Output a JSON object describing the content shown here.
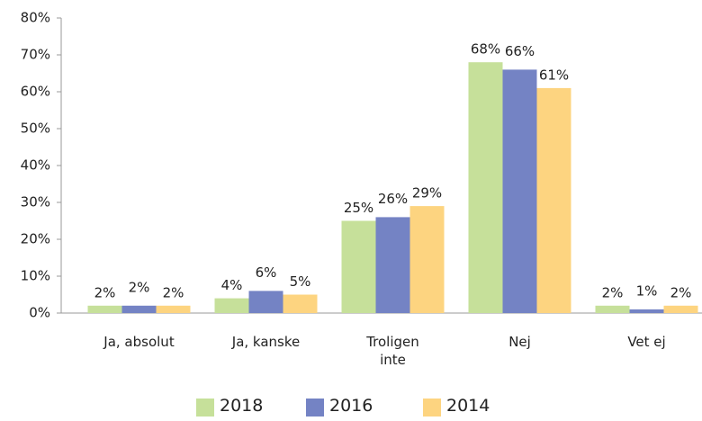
{
  "chart_data": {
    "type": "bar",
    "categories": [
      "Ja, absolut",
      "Ja, kanske",
      "Troligen\ninte",
      "Nej",
      "Vet ej"
    ],
    "series": [
      {
        "name": "2018",
        "color": "#c6e09a",
        "values": [
          2,
          4,
          25,
          68,
          2
        ],
        "value_labels": [
          "2%",
          "4%",
          "25%",
          "68%",
          "2%"
        ]
      },
      {
        "name": "2016",
        "color": "#7483c4",
        "values": [
          2,
          6,
          26,
          66,
          1
        ],
        "value_labels": [
          "2%",
          "6%",
          "26%",
          "66%",
          "1%"
        ]
      },
      {
        "name": "2014",
        "color": "#fdd480",
        "values": [
          2,
          5,
          29,
          61,
          2
        ],
        "value_labels": [
          "2%",
          "5%",
          "29%",
          "61%",
          "2%"
        ]
      }
    ],
    "ylim": [
      0,
      80
    ],
    "yticks": [
      {
        "value": 0,
        "label": "0%"
      },
      {
        "value": 10,
        "label": "10%"
      },
      {
        "value": 20,
        "label": "20%"
      },
      {
        "value": 30,
        "label": "30%"
      },
      {
        "value": 40,
        "label": "40%"
      },
      {
        "value": 50,
        "label": "50%"
      },
      {
        "value": 60,
        "label": "60%"
      },
      {
        "value": 70,
        "label": "70%"
      },
      {
        "value": 80,
        "label": "80%"
      }
    ],
    "legend": "bottom"
  }
}
